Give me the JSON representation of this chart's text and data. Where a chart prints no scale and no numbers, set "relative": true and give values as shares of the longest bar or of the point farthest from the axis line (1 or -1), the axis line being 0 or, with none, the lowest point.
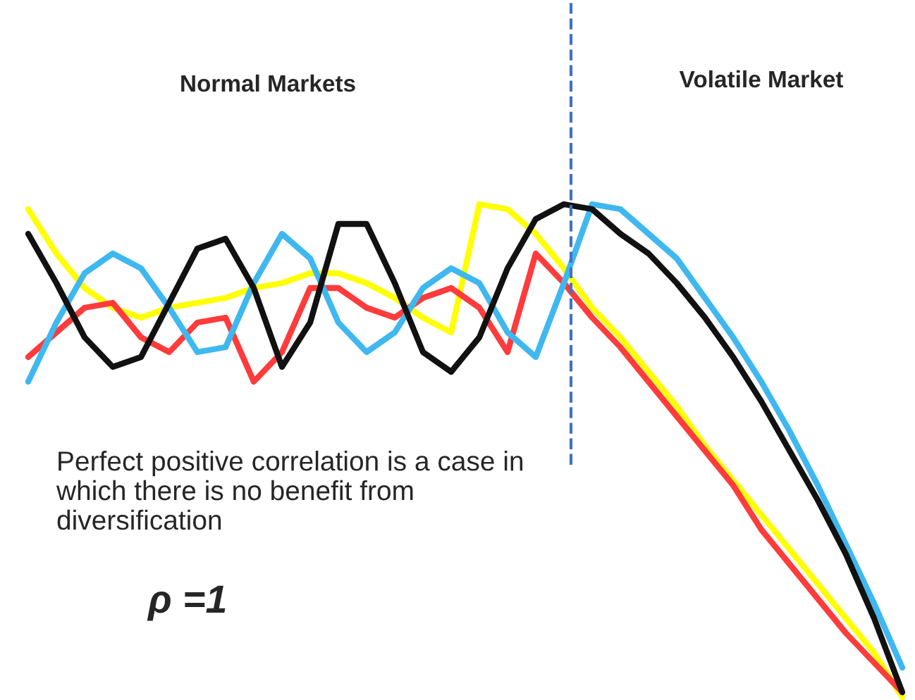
{
  "chart_data": {
    "type": "line",
    "relative": true,
    "categories": [
      null,
      null,
      null,
      null,
      null,
      null,
      null,
      null,
      null,
      null,
      null,
      null,
      null,
      null,
      null,
      null,
      null,
      null,
      null,
      null,
      null,
      null,
      null,
      null,
      null,
      null,
      null,
      null,
      null,
      null,
      null,
      null
    ],
    "series": [
      {
        "color": "#ffff00",
        "values": [
          0.99,
          0.9,
          0.83,
          0.79,
          0.77,
          0.79,
          0.8,
          0.81,
          0.83,
          0.84,
          0.86,
          0.86,
          0.84,
          0.81,
          0.77,
          0.74,
          1.0,
          0.99,
          0.94,
          0.87,
          0.79,
          0.73,
          0.66,
          0.59,
          0.51,
          0.44,
          0.37,
          0.3,
          0.23,
          0.16,
          0.09,
          0.0
        ]
      },
      {
        "color": "#ff3b3b",
        "values": [
          0.69,
          0.74,
          0.79,
          0.8,
          0.73,
          0.7,
          0.76,
          0.77,
          0.64,
          0.7,
          0.83,
          0.83,
          0.79,
          0.77,
          0.81,
          0.83,
          0.79,
          0.7,
          0.9,
          0.84,
          0.77,
          0.71,
          0.64,
          0.57,
          0.5,
          0.43,
          0.34,
          0.27,
          0.2,
          0.13,
          0.07,
          0.01
        ]
      },
      {
        "color": "#3fb8f0",
        "values": [
          0.64,
          0.76,
          0.86,
          0.9,
          0.87,
          0.79,
          0.7,
          0.71,
          0.84,
          0.94,
          0.89,
          0.76,
          0.7,
          0.74,
          0.83,
          0.87,
          0.84,
          0.74,
          0.69,
          0.84,
          1.0,
          0.99,
          0.94,
          0.89,
          0.81,
          0.73,
          0.64,
          0.54,
          0.43,
          0.31,
          0.19,
          0.06
        ]
      },
      {
        "color": "#111111",
        "values": [
          0.94,
          0.84,
          0.73,
          0.67,
          0.69,
          0.8,
          0.91,
          0.93,
          0.83,
          0.67,
          0.76,
          0.96,
          0.96,
          0.84,
          0.7,
          0.66,
          0.73,
          0.87,
          0.97,
          1.0,
          0.99,
          0.94,
          0.9,
          0.84,
          0.77,
          0.69,
          0.6,
          0.5,
          0.4,
          0.29,
          0.16,
          0.01
        ]
      }
    ],
    "annotations": [
      "Normal Markets",
      "Volatile Market",
      "Perfect positive correlation is a case in which there is no benefit from diversification",
      "ρ =1"
    ],
    "grid": false,
    "legend": false,
    "marker": "none",
    "line_style": "solid"
  }
}
